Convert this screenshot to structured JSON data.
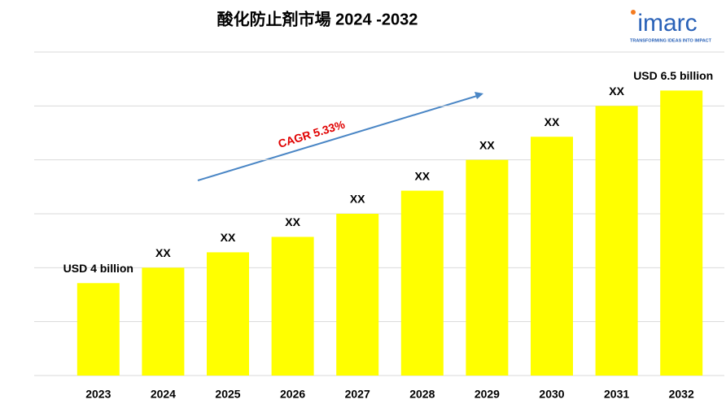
{
  "chart_data": {
    "type": "bar",
    "title": "酸化防止剤市場 2024 -2032",
    "categories": [
      "2023",
      "2024",
      "2025",
      "2026",
      "2027",
      "2028",
      "2029",
      "2030",
      "2031",
      "2032"
    ],
    "values": [
      4,
      4.2,
      4.4,
      4.6,
      4.9,
      5.2,
      5.6,
      5.9,
      6.3,
      6.5
    ],
    "value_labels": [
      "USD 4 billion",
      "XX",
      "XX",
      "XX",
      "XX",
      "XX",
      "XX",
      "XX",
      "XX",
      "USD 6.5 billion"
    ],
    "color": "#ffff00",
    "ylim": [
      2.8,
      7
    ],
    "yticks": [
      2.8,
      3.5,
      4.2,
      4.9,
      5.6,
      6.3,
      7
    ],
    "grid": true,
    "annotation": "CAGR 5.33%"
  },
  "logo": {
    "name": "imarc",
    "tagline": "TRANSFORMING IDEAS INTO IMPACT"
  }
}
